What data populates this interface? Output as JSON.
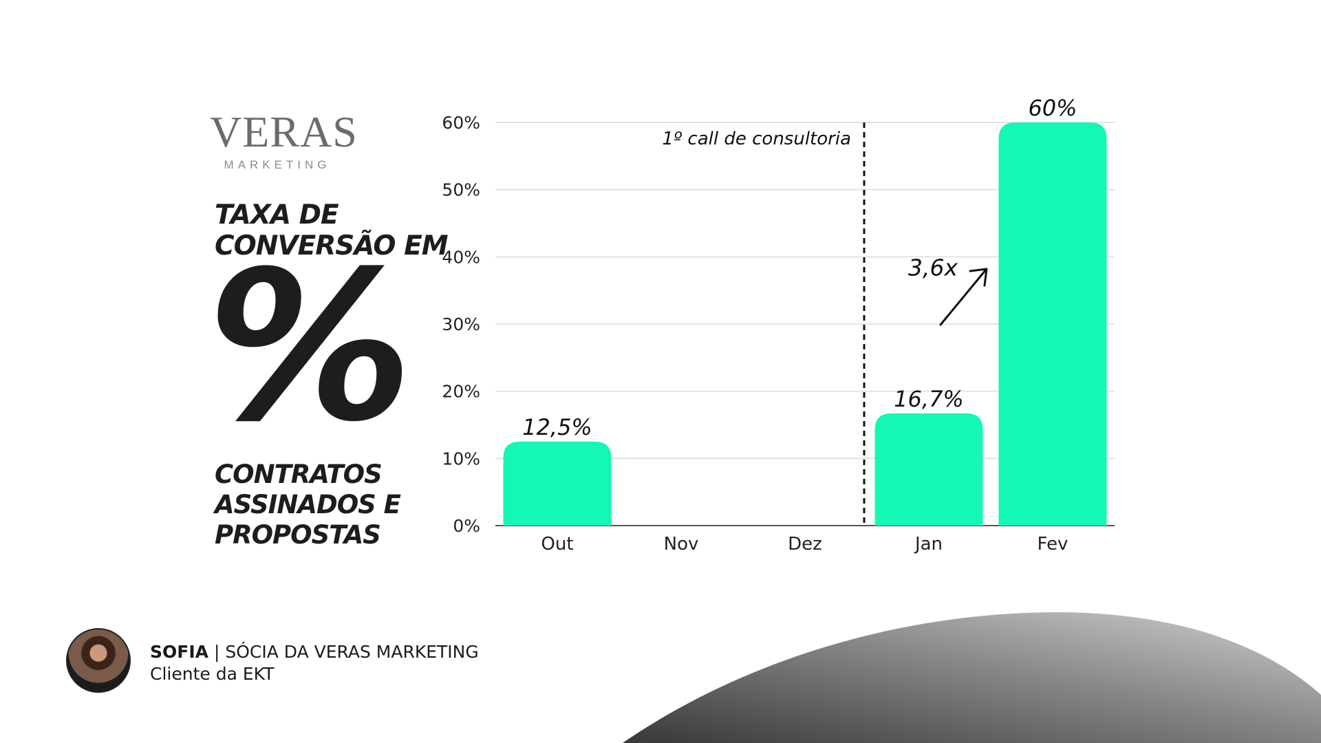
{
  "logo": {
    "main": "VERAS",
    "sub": "MARKETING"
  },
  "headline": {
    "line1": "TAXA DE",
    "line2": "CONVERSÃO EM",
    "symbol": "%"
  },
  "subline": {
    "line1": "CONTRATOS",
    "line2": "ASSINADOS E",
    "line3": "PROPOSTAS"
  },
  "chart_data": {
    "type": "bar",
    "categories": [
      "Out",
      "Nov",
      "Dez",
      "Jan",
      "Fev"
    ],
    "values": [
      12.5,
      null,
      null,
      16.7,
      60
    ],
    "data_labels": [
      "12,5%",
      "",
      "",
      "16,7%",
      "60%"
    ],
    "yticks": [
      "0%",
      "10%",
      "20%",
      "30%",
      "40%",
      "50%",
      "60%"
    ],
    "ylim": [
      0,
      60
    ],
    "grid": true,
    "bar_color": "#14f8b4",
    "annotation": {
      "text": "1º call de consultoria",
      "between": [
        "Dez",
        "Jan"
      ]
    },
    "growth": {
      "text": "3,6x"
    }
  },
  "person": {
    "name": "SOFIA",
    "separator": " | ",
    "role": "SÓCIA DA VERAS MARKETING",
    "subtitle": "Cliente da EKT"
  }
}
